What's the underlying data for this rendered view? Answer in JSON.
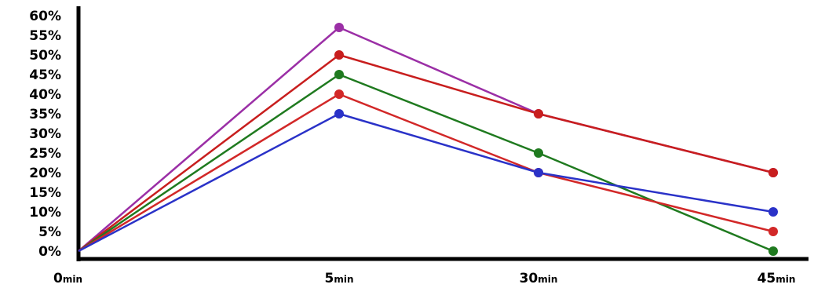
{
  "chart_data": {
    "type": "line",
    "title": "",
    "xlabel": "",
    "ylabel": "",
    "categories": [
      {
        "num": "0",
        "unit": "min"
      },
      {
        "num": "5",
        "unit": "min"
      },
      {
        "num": "30",
        "unit": "min"
      },
      {
        "num": "45",
        "unit": "min"
      }
    ],
    "y_ticks": [
      "0%",
      "5%",
      "10%",
      "15%",
      "20%",
      "25%",
      "30%",
      "35%",
      "40%",
      "45%",
      "50%",
      "55%",
      "60%"
    ],
    "ylim": [
      0,
      60
    ],
    "grid": false,
    "legend": "none",
    "series": [
      {
        "color": "#9b2fa6",
        "values": [
          0,
          57,
          35,
          20
        ]
      },
      {
        "color": "#c81e1e",
        "values": [
          0,
          50,
          35,
          20
        ]
      },
      {
        "color": "#1f7a1f",
        "values": [
          0,
          45,
          25,
          0
        ]
      },
      {
        "color": "#d22828",
        "values": [
          0,
          40,
          20,
          5
        ]
      },
      {
        "color": "#2a32c8",
        "values": [
          0,
          35,
          20,
          10
        ]
      }
    ]
  }
}
